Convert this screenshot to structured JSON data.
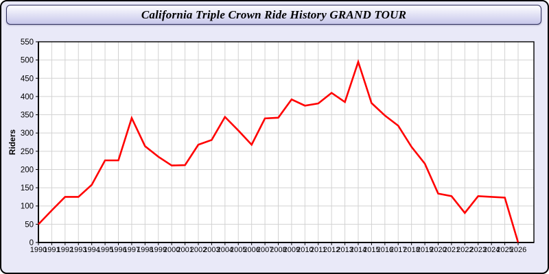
{
  "window": {
    "title": "California Triple Crown Ride History GRAND TOUR"
  },
  "colors": {
    "window_bg": "#e9e9f8",
    "window_border": "#000000",
    "titlebar_top": "#ffffff",
    "titlebar_bottom": "#c7c7ea",
    "plot_bg": "#ffffff",
    "grid": "#d2d2d2",
    "axis": "#000000",
    "tick_label": "#000000",
    "line": "#ff0000"
  },
  "chart_data": {
    "type": "line",
    "title": "California Triple Crown Ride History GRAND TOUR",
    "xlabel": "",
    "ylabel": "Riders",
    "ylim": [
      0,
      550
    ],
    "ytick_step": 50,
    "grid": true,
    "legend_position": "none",
    "x": [
      1990,
      1991,
      1992,
      1993,
      1994,
      1995,
      1996,
      1997,
      1998,
      1999,
      2000,
      2001,
      2002,
      2003,
      2004,
      2005,
      2006,
      2007,
      2008,
      2009,
      2010,
      2011,
      2012,
      2013,
      2014,
      2015,
      2016,
      2017,
      2018,
      2019,
      2020,
      2021,
      2022,
      2023,
      2024,
      2025,
      2026
    ],
    "series": [
      {
        "name": "Riders",
        "color": "#ff0000",
        "values": [
          50,
          88,
          125,
          125,
          158,
          225,
          225,
          341,
          264,
          235,
          211,
          212,
          268,
          281,
          344,
          307,
          268,
          340,
          342,
          392,
          375,
          381,
          410,
          385,
          495,
          382,
          348,
          320,
          262,
          216,
          134,
          127,
          81,
          127,
          125,
          123,
          0
        ]
      }
    ]
  }
}
